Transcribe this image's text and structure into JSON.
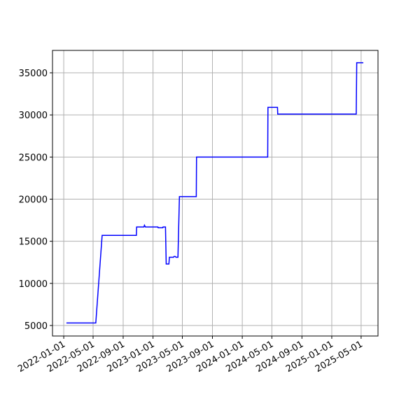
{
  "chart_data": {
    "type": "line",
    "x": [
      "2022-01-12",
      "2022-05-12",
      "2022-06-07",
      "2022-10-25",
      "2022-10-26",
      "2022-11-25",
      "2022-11-27",
      "2022-12-01",
      "2023-01-21",
      "2023-01-22",
      "2023-02-10",
      "2023-02-11",
      "2023-02-21",
      "2023-02-24",
      "2023-03-07",
      "2023-03-09",
      "2023-03-26",
      "2023-03-28",
      "2023-04-02",
      "2023-04-05",
      "2023-04-13",
      "2023-04-19",
      "2023-06-27",
      "2023-06-28",
      "2024-04-14",
      "2024-04-15",
      "2024-05-24",
      "2024-05-25",
      "2025-04-11",
      "2025-04-13",
      "2025-05-10"
    ],
    "series": [
      {
        "color": "#0000ff",
        "values": [
          5300,
          5300,
          15700,
          15700,
          16700,
          16700,
          16900,
          16700,
          16700,
          16600,
          16600,
          16700,
          16700,
          12300,
          12300,
          13100,
          13100,
          13200,
          13200,
          13100,
          13100,
          20300,
          20300,
          25000,
          25000,
          30900,
          30900,
          30100,
          30100,
          36200,
          36200
        ]
      }
    ],
    "xlim": [
      "2021-11-16",
      "2025-07-09"
    ],
    "xticks": [
      "2022-01-01",
      "2022-05-01",
      "2022-09-01",
      "2023-01-01",
      "2023-05-01",
      "2023-09-01",
      "2024-01-01",
      "2024-05-01",
      "2024-09-01",
      "2025-01-01",
      "2025-05-01"
    ],
    "ylim": [
      3753,
      37660
    ],
    "yticks": [
      5000,
      10000,
      15000,
      20000,
      25000,
      30000,
      35000
    ],
    "grid": true
  }
}
